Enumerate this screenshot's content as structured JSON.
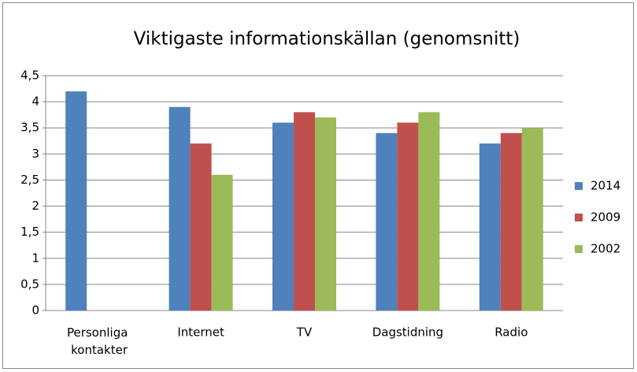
{
  "chart_data": {
    "type": "bar",
    "title": "Viktigaste informationskällan (genomsnitt)",
    "categories": [
      "Personliga kontakter",
      "Internet",
      "TV",
      "Dagstidning",
      "Radio"
    ],
    "series": [
      {
        "name": "2014",
        "color": "#4f81bd",
        "values": [
          4.2,
          3.9,
          3.6,
          3.4,
          3.2
        ]
      },
      {
        "name": "2009",
        "color": "#c0504d",
        "values": [
          null,
          3.2,
          3.8,
          3.6,
          3.4
        ]
      },
      {
        "name": "2002",
        "color": "#9bbb59",
        "values": [
          null,
          2.6,
          3.7,
          3.8,
          3.5
        ]
      }
    ],
    "ylim": [
      0,
      4.5
    ],
    "yticks": [
      0,
      {
        "value": 0.5,
        "label": "0,5"
      },
      1,
      {
        "value": 1.5,
        "label": "1,5"
      },
      2,
      {
        "value": 2.5,
        "label": "2,5"
      },
      3,
      {
        "value": 3.5,
        "label": "3,5"
      },
      4,
      {
        "value": 4.5,
        "label": "4,5"
      }
    ],
    "grid": true,
    "legend": "right"
  }
}
